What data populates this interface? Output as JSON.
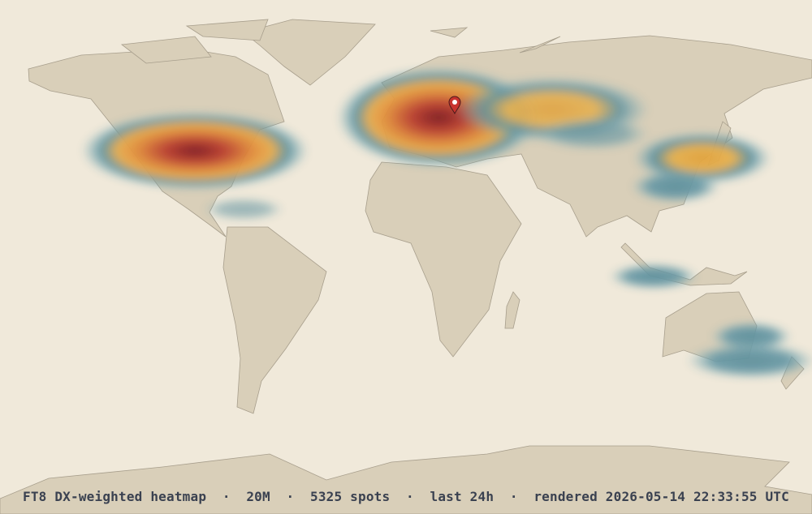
{
  "caption": "FT8 DX-weighted heatmap  ·  20M  ·  5325 spots  ·  last 24h  ·  rendered 2026-05-14 22:33:55 UTC"
}
